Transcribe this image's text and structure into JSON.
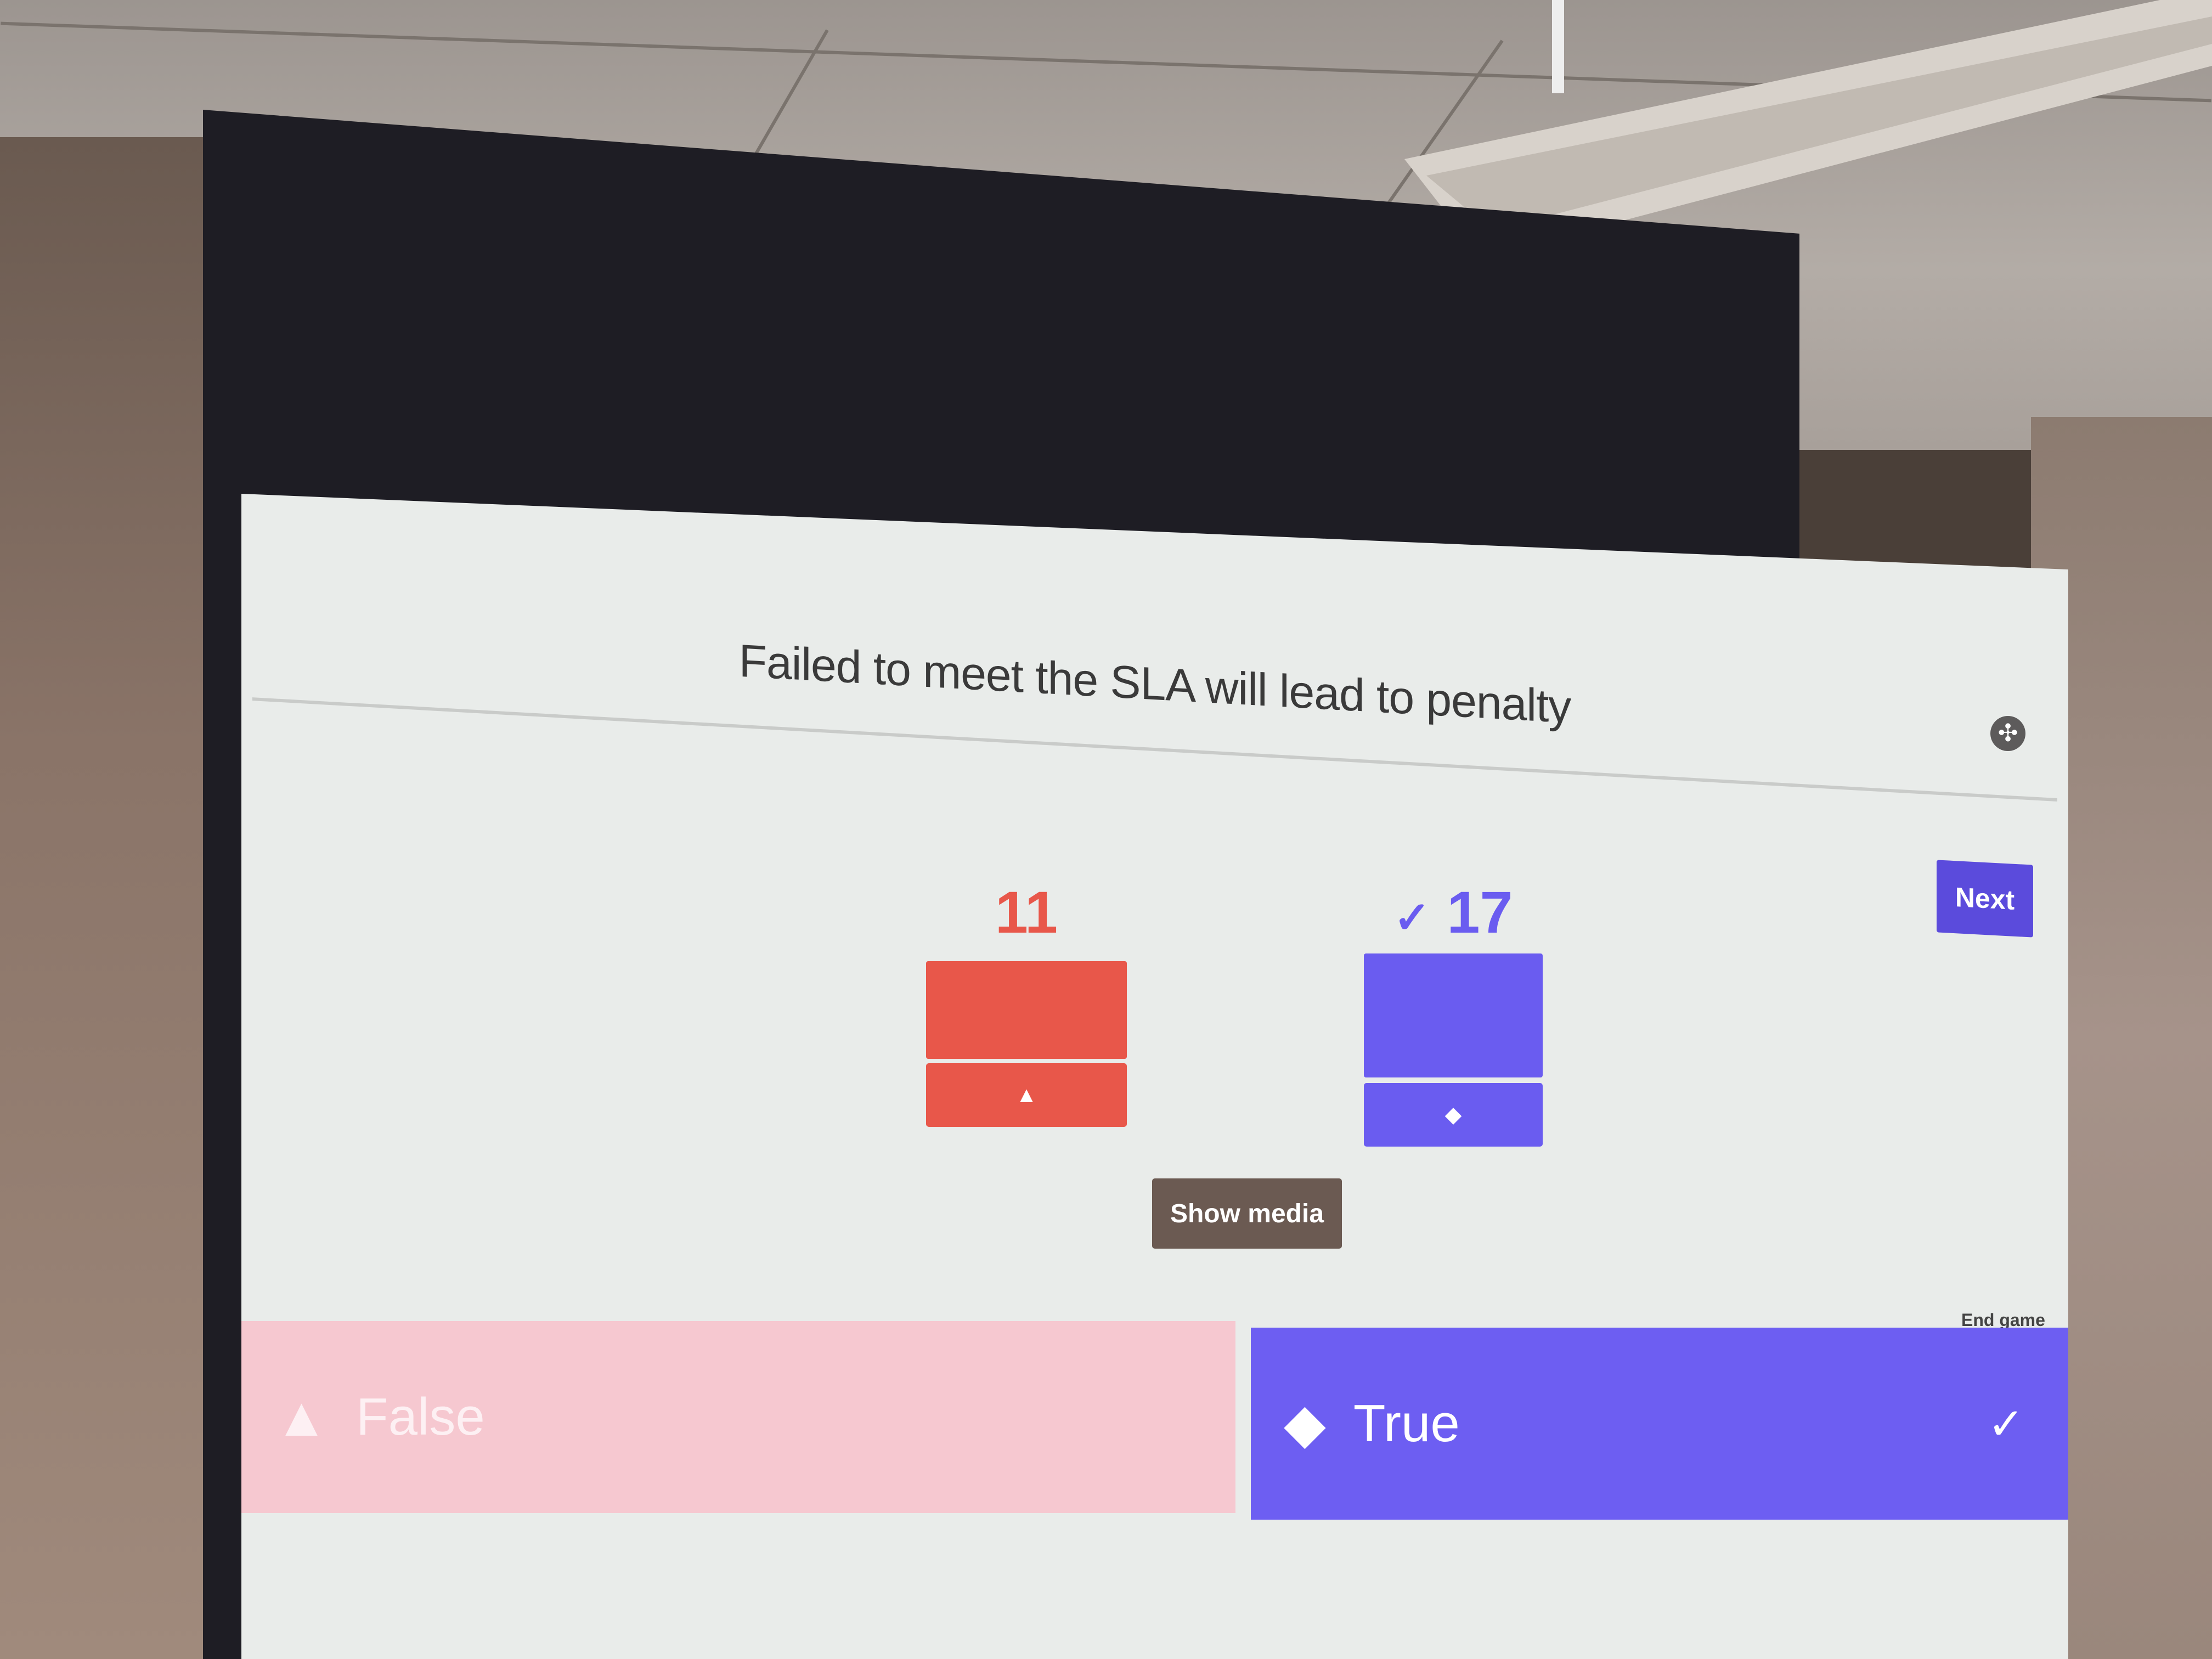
{
  "question": {
    "text": "Failed to meet the SLA will lead to penalty"
  },
  "controls": {
    "settings_icon": "settings-icon",
    "next_label": "Next",
    "show_media_label": "Show media",
    "end_game_label": "End game"
  },
  "results": [
    {
      "count": "11",
      "correct_mark": "",
      "shape": "▲",
      "color": "#e8574a"
    },
    {
      "count": "17",
      "correct_mark": "✓",
      "shape": "◆",
      "color": "#6a5cf0"
    }
  ],
  "answers": [
    {
      "shape": "▲",
      "label": "False",
      "check": "",
      "color": "#f6c8d0",
      "correct": false
    },
    {
      "shape": "◆",
      "label": "True",
      "check": "✓",
      "color": "#6d5ef2",
      "correct": true
    }
  ]
}
